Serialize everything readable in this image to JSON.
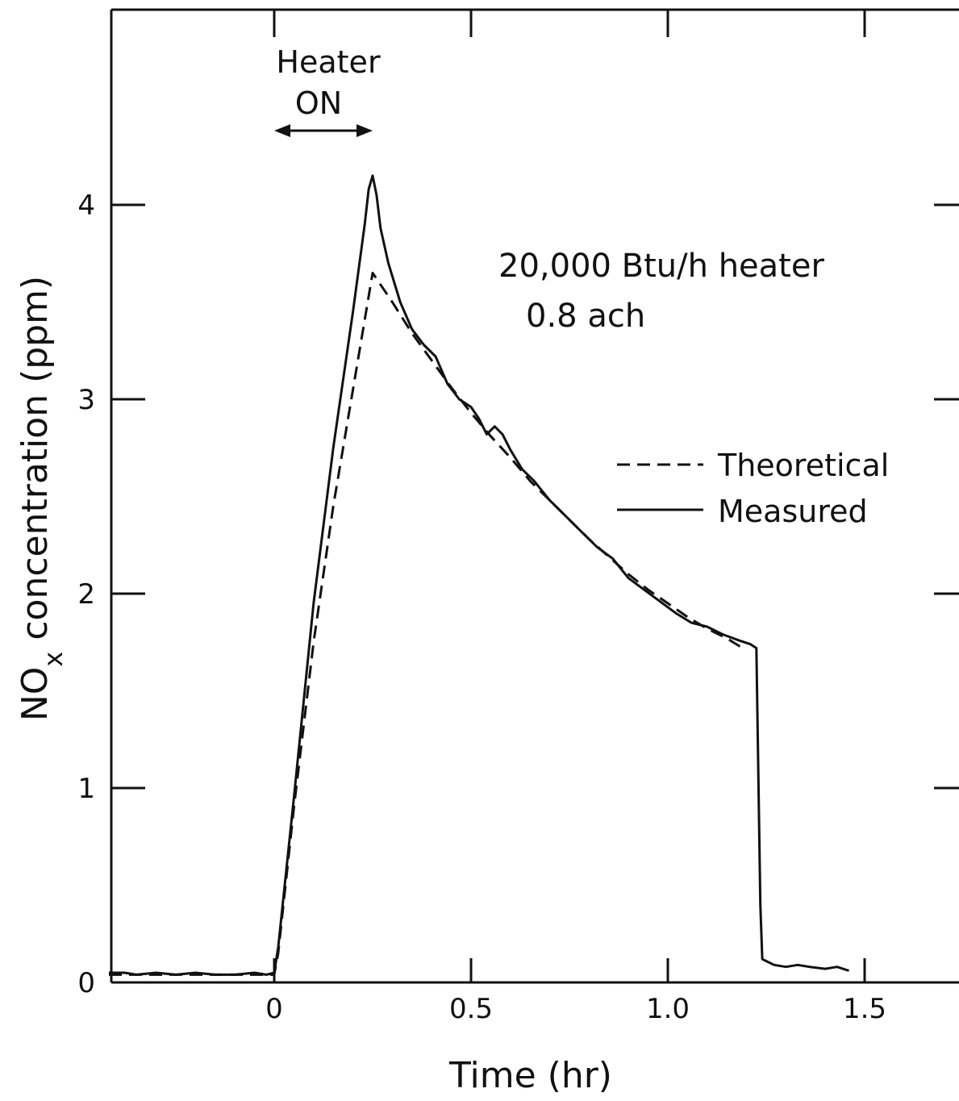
{
  "chart_data": {
    "type": "line",
    "xlabel": "Time (hr)",
    "ylabel_main": "NO",
    "ylabel_sub": "x",
    "ylabel_rest": " concentration (ppm)",
    "xlim": [
      -0.42,
      1.72
    ],
    "ylim": [
      0,
      4.9
    ],
    "x_ticks": [
      {
        "value": 0,
        "label": "0"
      },
      {
        "value": 0.5,
        "label": "0.5"
      },
      {
        "value": 1.0,
        "label": "1.0"
      },
      {
        "value": 1.5,
        "label": "1.5"
      }
    ],
    "y_ticks": [
      {
        "value": 0,
        "label": "0"
      },
      {
        "value": 1,
        "label": "1"
      },
      {
        "value": 2,
        "label": "2"
      },
      {
        "value": 3,
        "label": "3"
      },
      {
        "value": 4,
        "label": "4"
      }
    ],
    "annotations": {
      "heater_line1": "Heater",
      "heater_line2": "ON",
      "heater_start": 0,
      "heater_end": 0.25,
      "heater_y": 4.65,
      "info_line1": "20,000 Btu/h heater",
      "info_line2": "0.8 ach"
    },
    "series": [
      {
        "name": "Theoretical",
        "style": "dashed",
        "color": "#111111",
        "points": [
          [
            -0.42,
            0.04
          ],
          [
            -0.2,
            0.04
          ],
          [
            0.0,
            0.04
          ],
          [
            0.01,
            0.15
          ],
          [
            0.05,
            0.9
          ],
          [
            0.1,
            1.75
          ],
          [
            0.15,
            2.45
          ],
          [
            0.2,
            3.05
          ],
          [
            0.25,
            3.65
          ],
          [
            0.3,
            3.5
          ],
          [
            0.35,
            3.34
          ],
          [
            0.4,
            3.2
          ],
          [
            0.45,
            3.06
          ],
          [
            0.5,
            2.93
          ],
          [
            0.55,
            2.81
          ],
          [
            0.6,
            2.7
          ],
          [
            0.65,
            2.58
          ],
          [
            0.7,
            2.48
          ],
          [
            0.75,
            2.38
          ],
          [
            0.8,
            2.28
          ],
          [
            0.85,
            2.19
          ],
          [
            0.9,
            2.1
          ],
          [
            0.95,
            2.02
          ],
          [
            1.0,
            1.95
          ],
          [
            1.05,
            1.88
          ],
          [
            1.1,
            1.82
          ],
          [
            1.15,
            1.77
          ],
          [
            1.19,
            1.72
          ]
        ]
      },
      {
        "name": "Measured",
        "style": "solid",
        "color": "#111111",
        "points": [
          [
            -0.42,
            0.05
          ],
          [
            -0.38,
            0.05
          ],
          [
            -0.35,
            0.04
          ],
          [
            -0.3,
            0.05
          ],
          [
            -0.25,
            0.04
          ],
          [
            -0.2,
            0.05
          ],
          [
            -0.15,
            0.04
          ],
          [
            -0.1,
            0.04
          ],
          [
            -0.05,
            0.05
          ],
          [
            -0.02,
            0.04
          ],
          [
            0.0,
            0.05
          ],
          [
            0.01,
            0.18
          ],
          [
            0.05,
            0.95
          ],
          [
            0.1,
            1.95
          ],
          [
            0.15,
            2.75
          ],
          [
            0.2,
            3.45
          ],
          [
            0.23,
            3.9
          ],
          [
            0.24,
            4.08
          ],
          [
            0.25,
            4.15
          ],
          [
            0.26,
            4.05
          ],
          [
            0.27,
            3.88
          ],
          [
            0.29,
            3.7
          ],
          [
            0.32,
            3.5
          ],
          [
            0.35,
            3.36
          ],
          [
            0.38,
            3.28
          ],
          [
            0.41,
            3.22
          ],
          [
            0.44,
            3.08
          ],
          [
            0.47,
            3.0
          ],
          [
            0.5,
            2.96
          ],
          [
            0.52,
            2.9
          ],
          [
            0.54,
            2.82
          ],
          [
            0.56,
            2.86
          ],
          [
            0.58,
            2.82
          ],
          [
            0.6,
            2.74
          ],
          [
            0.63,
            2.64
          ],
          [
            0.66,
            2.58
          ],
          [
            0.7,
            2.48
          ],
          [
            0.74,
            2.4
          ],
          [
            0.78,
            2.32
          ],
          [
            0.82,
            2.24
          ],
          [
            0.86,
            2.18
          ],
          [
            0.9,
            2.08
          ],
          [
            0.94,
            2.02
          ],
          [
            0.98,
            1.96
          ],
          [
            1.02,
            1.9
          ],
          [
            1.06,
            1.85
          ],
          [
            1.1,
            1.83
          ],
          [
            1.14,
            1.79
          ],
          [
            1.18,
            1.76
          ],
          [
            1.21,
            1.74
          ],
          [
            1.225,
            1.72
          ],
          [
            1.235,
            0.4
          ],
          [
            1.24,
            0.12
          ],
          [
            1.27,
            0.09
          ],
          [
            1.3,
            0.08
          ],
          [
            1.33,
            0.09
          ],
          [
            1.36,
            0.08
          ],
          [
            1.4,
            0.07
          ],
          [
            1.43,
            0.08
          ],
          [
            1.46,
            0.06
          ]
        ]
      }
    ],
    "legend_placement": "right-middle"
  }
}
